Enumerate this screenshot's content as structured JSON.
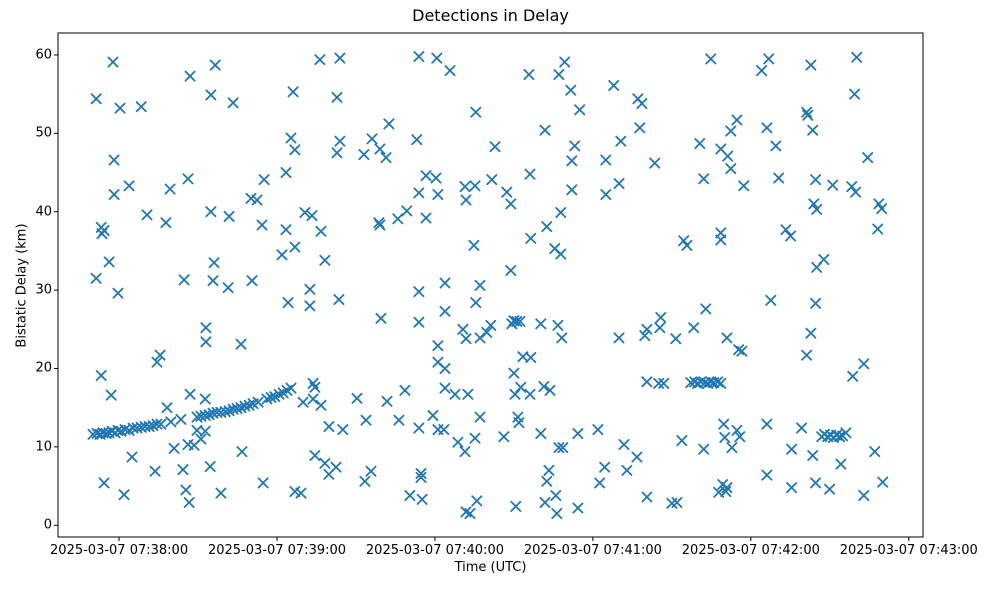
{
  "chart_data": {
    "type": "scatter",
    "title": "Detections in Delay",
    "xlabel": "Time (UTC)",
    "ylabel": "Bistatic Delay (km)",
    "marker": "x",
    "marker_color": "#1f77b4",
    "axis_color": "#000000",
    "background": "#ffffff",
    "grid": false,
    "legend": null,
    "x_axis": {
      "unit": "seconds after 2025-03-07 07:38:00 UTC",
      "lim": [
        -23.2,
        305.4
      ],
      "tick_positions": [
        0,
        60,
        120,
        180,
        240,
        300
      ],
      "tick_labels": [
        "2025-03-07 07:38:00",
        "2025-03-07 07:39:00",
        "2025-03-07 07:40:00",
        "2025-03-07 07:41:00",
        "2025-03-07 07:42:00",
        "2025-03-07 07:43:00"
      ]
    },
    "y_axis": {
      "lim": [
        -1.5,
        62.8
      ],
      "tick_positions": [
        0,
        10,
        20,
        30,
        40,
        50,
        60
      ],
      "tick_labels": [
        "0",
        "10",
        "20",
        "30",
        "40",
        "50",
        "60"
      ]
    },
    "points": [
      [
        -2.3,
        59.1
      ],
      [
        36.5,
        58.7
      ],
      [
        27.0,
        57.3
      ],
      [
        76.3,
        59.4
      ],
      [
        83.9,
        59.6
      ],
      [
        -8.7,
        54.4
      ],
      [
        0.4,
        53.2
      ],
      [
        8.4,
        53.4
      ],
      [
        34.9,
        54.9
      ],
      [
        43.3,
        53.9
      ],
      [
        66.1,
        55.3
      ],
      [
        82.8,
        54.6
      ],
      [
        65.3,
        49.4
      ],
      [
        66.8,
        47.9
      ],
      [
        83.9,
        49.0
      ],
      [
        82.8,
        47.5
      ],
      [
        -1.9,
        46.6
      ],
      [
        3.8,
        43.3
      ],
      [
        -1.9,
        42.2
      ],
      [
        26.2,
        44.2
      ],
      [
        19.4,
        42.9
      ],
      [
        55.1,
        44.1
      ],
      [
        63.4,
        45.0
      ],
      [
        50.1,
        41.7
      ],
      [
        52.4,
        41.5
      ],
      [
        70.6,
        39.9
      ],
      [
        73.3,
        39.5
      ],
      [
        34.9,
        40.0
      ],
      [
        41.8,
        39.4
      ],
      [
        10.6,
        39.6
      ],
      [
        17.8,
        38.6
      ],
      [
        54.3,
        38.3
      ],
      [
        63.4,
        37.7
      ],
      [
        76.7,
        37.5
      ],
      [
        -6.8,
        38.0
      ],
      [
        -5.7,
        37.6
      ],
      [
        -6.5,
        37.2
      ],
      [
        66.8,
        35.5
      ],
      [
        61.9,
        34.5
      ],
      [
        -3.8,
        33.6
      ],
      [
        78.2,
        33.8
      ],
      [
        -8.7,
        31.5
      ],
      [
        36.1,
        33.5
      ],
      [
        -0.4,
        29.6
      ],
      [
        41.4,
        30.3
      ],
      [
        35.7,
        31.2
      ],
      [
        50.5,
        31.2
      ],
      [
        24.7,
        31.3
      ],
      [
        113.9,
        59.8
      ],
      [
        120.7,
        59.6
      ],
      [
        125.7,
        58.0
      ],
      [
        155.7,
        57.5
      ],
      [
        169.3,
        59.1
      ],
      [
        167.1,
        57.5
      ],
      [
        171.6,
        55.5
      ],
      [
        187.9,
        56.1
      ],
      [
        197.1,
        54.4
      ],
      [
        198.6,
        53.8
      ],
      [
        175.0,
        53.0
      ],
      [
        135.5,
        52.7
      ],
      [
        197.8,
        50.7
      ],
      [
        102.5,
        51.2
      ],
      [
        96.1,
        49.3
      ],
      [
        99.1,
        48.0
      ],
      [
        101.4,
        46.9
      ],
      [
        93.0,
        47.3
      ],
      [
        113.1,
        49.2
      ],
      [
        161.8,
        50.4
      ],
      [
        142.8,
        48.3
      ],
      [
        173.1,
        48.4
      ],
      [
        190.6,
        49.0
      ],
      [
        172.0,
        46.5
      ],
      [
        184.9,
        46.6
      ],
      [
        116.6,
        44.6
      ],
      [
        120.4,
        44.3
      ],
      [
        141.6,
        44.1
      ],
      [
        156.1,
        44.8
      ],
      [
        131.4,
        43.2
      ],
      [
        135.2,
        43.3
      ],
      [
        113.9,
        42.4
      ],
      [
        121.1,
        42.2
      ],
      [
        147.3,
        42.5
      ],
      [
        131.8,
        41.5
      ],
      [
        148.8,
        41.0
      ],
      [
        172.0,
        42.8
      ],
      [
        189.9,
        43.6
      ],
      [
        184.9,
        42.2
      ],
      [
        167.8,
        39.9
      ],
      [
        109.3,
        40.1
      ],
      [
        105.9,
        39.1
      ],
      [
        98.7,
        38.6
      ],
      [
        99.1,
        38.3
      ],
      [
        116.6,
        39.2
      ],
      [
        162.5,
        38.1
      ],
      [
        156.4,
        36.6
      ],
      [
        165.5,
        35.3
      ],
      [
        167.8,
        34.6
      ],
      [
        134.8,
        35.7
      ],
      [
        148.8,
        32.5
      ],
      [
        123.8,
        30.9
      ],
      [
        137.1,
        30.6
      ],
      [
        224.8,
        59.5
      ],
      [
        246.8,
        59.5
      ],
      [
        244.1,
        58.0
      ],
      [
        262.8,
        58.7
      ],
      [
        280.2,
        59.7
      ],
      [
        279.4,
        55.0
      ],
      [
        234.7,
        51.7
      ],
      [
        232.4,
        50.3
      ],
      [
        246.1,
        50.7
      ],
      [
        261.2,
        52.7
      ],
      [
        261.6,
        52.3
      ],
      [
        263.5,
        50.4
      ],
      [
        220.6,
        48.7
      ],
      [
        228.6,
        48.0
      ],
      [
        231.2,
        47.1
      ],
      [
        249.5,
        48.4
      ],
      [
        203.5,
        46.2
      ],
      [
        284.4,
        46.9
      ],
      [
        232.4,
        45.5
      ],
      [
        222.1,
        44.2
      ],
      [
        237.3,
        43.3
      ],
      [
        250.6,
        44.3
      ],
      [
        264.6,
        44.1
      ],
      [
        271.1,
        43.4
      ],
      [
        278.3,
        43.2
      ],
      [
        279.8,
        42.5
      ],
      [
        288.6,
        41.0
      ],
      [
        289.7,
        40.4
      ],
      [
        263.9,
        41.0
      ],
      [
        265.0,
        40.3
      ],
      [
        288.2,
        37.8
      ],
      [
        253.3,
        37.7
      ],
      [
        255.1,
        36.9
      ],
      [
        228.6,
        37.3
      ],
      [
        228.6,
        36.4
      ],
      [
        214.5,
        36.3
      ],
      [
        215.7,
        35.7
      ],
      [
        267.7,
        33.9
      ],
      [
        265.0,
        32.9
      ],
      [
        72.5,
        30.1
      ],
      [
        64.2,
        28.4
      ],
      [
        72.5,
        28.0
      ],
      [
        83.5,
        28.8
      ],
      [
        33.0,
        25.2
      ],
      [
        33.0,
        23.4
      ],
      [
        46.3,
        23.1
      ],
      [
        15.6,
        21.7
      ],
      [
        14.4,
        20.8
      ],
      [
        -6.8,
        19.1
      ],
      [
        -3.0,
        16.6
      ],
      [
        18.2,
        15.0
      ],
      [
        27.0,
        16.7
      ],
      [
        32.7,
        16.1
      ],
      [
        19.7,
        13.2
      ],
      [
        23.5,
        13.5
      ],
      [
        73.7,
        18.1
      ],
      [
        74.4,
        17.6
      ],
      [
        69.9,
        15.7
      ],
      [
        73.7,
        16.1
      ],
      [
        76.7,
        15.3
      ],
      [
        79.7,
        12.6
      ],
      [
        85.0,
        12.2
      ],
      [
        29.6,
        12.1
      ],
      [
        32.7,
        12.0
      ],
      [
        31.1,
        11.0
      ],
      [
        20.9,
        9.8
      ],
      [
        26.2,
        10.3
      ],
      [
        28.5,
        10.2
      ],
      [
        46.7,
        9.4
      ],
      [
        4.9,
        8.7
      ],
      [
        13.7,
        6.9
      ],
      [
        24.3,
        7.1
      ],
      [
        34.6,
        7.5
      ],
      [
        -5.7,
        5.4
      ],
      [
        1.9,
        3.9
      ],
      [
        25.4,
        4.5
      ],
      [
        26.6,
        2.9
      ],
      [
        38.7,
        4.1
      ],
      [
        54.7,
        5.4
      ],
      [
        66.8,
        4.3
      ],
      [
        69.1,
        4.1
      ],
      [
        74.4,
        8.9
      ],
      [
        78.2,
        7.9
      ],
      [
        79.7,
        6.5
      ],
      [
        82.4,
        7.4
      ],
      [
        -9.9,
        11.6
      ],
      [
        -8.4,
        11.7
      ],
      [
        -7.2,
        11.6
      ],
      [
        -6.1,
        11.8
      ],
      [
        -4.9,
        11.7
      ],
      [
        -3.8,
        11.8
      ],
      [
        -2.7,
        12.0
      ],
      [
        -1.5,
        11.8
      ],
      [
        -0.4,
        12.1
      ],
      [
        0.8,
        12.0
      ],
      [
        2.3,
        12.2
      ],
      [
        3.8,
        12.1
      ],
      [
        5.3,
        12.4
      ],
      [
        6.8,
        12.4
      ],
      [
        8.4,
        12.5
      ],
      [
        9.9,
        12.6
      ],
      [
        11.4,
        12.6
      ],
      [
        12.9,
        12.7
      ],
      [
        14.4,
        12.9
      ],
      [
        15.9,
        12.9
      ],
      [
        29.6,
        13.8
      ],
      [
        31.1,
        13.9
      ],
      [
        32.7,
        14.0
      ],
      [
        34.2,
        14.1
      ],
      [
        35.7,
        14.3
      ],
      [
        37.2,
        14.4
      ],
      [
        38.7,
        14.4
      ],
      [
        40.3,
        14.5
      ],
      [
        41.8,
        14.6
      ],
      [
        43.3,
        14.8
      ],
      [
        44.8,
        14.9
      ],
      [
        46.3,
        15.0
      ],
      [
        47.8,
        15.2
      ],
      [
        49.4,
        15.3
      ],
      [
        50.9,
        15.5
      ],
      [
        52.8,
        15.7
      ],
      [
        56.2,
        16.1
      ],
      [
        57.7,
        16.3
      ],
      [
        59.2,
        16.4
      ],
      [
        60.8,
        16.7
      ],
      [
        62.3,
        16.9
      ],
      [
        63.8,
        17.2
      ],
      [
        65.3,
        17.5
      ],
      [
        113.9,
        29.8
      ],
      [
        135.5,
        28.4
      ],
      [
        99.5,
        26.4
      ],
      [
        123.8,
        27.3
      ],
      [
        113.9,
        25.9
      ],
      [
        150.0,
        26.1
      ],
      [
        151.1,
        26.0
      ],
      [
        152.3,
        26.0
      ],
      [
        149.2,
        25.7
      ],
      [
        160.2,
        25.7
      ],
      [
        166.7,
        25.5
      ],
      [
        168.2,
        23.9
      ],
      [
        189.9,
        23.9
      ],
      [
        130.6,
        25.0
      ],
      [
        131.8,
        23.8
      ],
      [
        137.1,
        23.9
      ],
      [
        139.7,
        24.6
      ],
      [
        141.2,
        25.5
      ],
      [
        121.1,
        22.9
      ],
      [
        121.1,
        20.8
      ],
      [
        123.8,
        20.0
      ],
      [
        153.4,
        21.5
      ],
      [
        156.4,
        21.4
      ],
      [
        150.0,
        19.4
      ],
      [
        152.6,
        17.6
      ],
      [
        156.1,
        16.7
      ],
      [
        161.4,
        17.7
      ],
      [
        163.7,
        17.2
      ],
      [
        150.4,
        16.7
      ],
      [
        123.8,
        17.5
      ],
      [
        127.6,
        16.7
      ],
      [
        132.5,
        16.7
      ],
      [
        108.6,
        17.2
      ],
      [
        90.4,
        16.2
      ],
      [
        101.8,
        15.8
      ],
      [
        93.8,
        13.4
      ],
      [
        106.3,
        13.4
      ],
      [
        119.2,
        14.0
      ],
      [
        113.9,
        12.4
      ],
      [
        121.1,
        12.2
      ],
      [
        123.4,
        12.2
      ],
      [
        137.1,
        13.8
      ],
      [
        128.7,
        10.6
      ],
      [
        135.2,
        11.1
      ],
      [
        131.4,
        9.4
      ],
      [
        146.2,
        11.3
      ],
      [
        151.5,
        13.8
      ],
      [
        151.9,
        13.1
      ],
      [
        160.2,
        11.7
      ],
      [
        174.3,
        11.7
      ],
      [
        181.9,
        12.2
      ],
      [
        167.1,
        9.9
      ],
      [
        168.6,
        9.9
      ],
      [
        191.8,
        10.3
      ],
      [
        196.7,
        8.7
      ],
      [
        95.7,
        6.9
      ],
      [
        93.4,
        5.6
      ],
      [
        114.7,
        6.6
      ],
      [
        114.7,
        6.1
      ],
      [
        163.3,
        7.0
      ],
      [
        162.5,
        5.6
      ],
      [
        184.5,
        7.4
      ],
      [
        192.9,
        7.0
      ],
      [
        182.6,
        5.4
      ],
      [
        110.5,
        3.8
      ],
      [
        115.1,
        3.3
      ],
      [
        135.9,
        3.1
      ],
      [
        165.9,
        3.8
      ],
      [
        161.8,
        2.9
      ],
      [
        150.7,
        2.4
      ],
      [
        131.8,
        1.7
      ],
      [
        133.3,
        1.5
      ],
      [
        174.3,
        2.2
      ],
      [
        166.3,
        1.5
      ],
      [
        247.6,
        28.7
      ],
      [
        264.6,
        28.3
      ],
      [
        222.9,
        27.6
      ],
      [
        205.8,
        26.5
      ],
      [
        205.4,
        25.2
      ],
      [
        200.5,
        25.0
      ],
      [
        199.7,
        24.2
      ],
      [
        211.5,
        23.8
      ],
      [
        218.3,
        25.2
      ],
      [
        230.9,
        23.9
      ],
      [
        235.4,
        22.4
      ],
      [
        236.6,
        22.2
      ],
      [
        262.8,
        24.5
      ],
      [
        261.2,
        21.7
      ],
      [
        282.9,
        20.6
      ],
      [
        278.7,
        19.0
      ],
      [
        200.5,
        18.3
      ],
      [
        205.0,
        18.1
      ],
      [
        206.9,
        18.1
      ],
      [
        217.2,
        18.2
      ],
      [
        218.7,
        18.3
      ],
      [
        219.8,
        18.1
      ],
      [
        221.0,
        18.3
      ],
      [
        222.5,
        18.2
      ],
      [
        223.6,
        18.1
      ],
      [
        224.8,
        18.3
      ],
      [
        225.9,
        18.2
      ],
      [
        227.4,
        18.3
      ],
      [
        228.6,
        18.1
      ],
      [
        229.7,
        12.9
      ],
      [
        230.1,
        11.2
      ],
      [
        234.7,
        12.1
      ],
      [
        235.8,
        11.3
      ],
      [
        232.8,
        9.9
      ],
      [
        246.1,
        12.9
      ],
      [
        259.3,
        12.4
      ],
      [
        266.9,
        11.3
      ],
      [
        268.0,
        11.6
      ],
      [
        269.2,
        11.3
      ],
      [
        270.3,
        11.5
      ],
      [
        271.4,
        11.2
      ],
      [
        272.6,
        11.5
      ],
      [
        273.7,
        11.3
      ],
      [
        274.9,
        11.4
      ],
      [
        276.1,
        11.8
      ],
      [
        213.8,
        10.8
      ],
      [
        222.1,
        9.7
      ],
      [
        255.5,
        9.7
      ],
      [
        263.5,
        8.9
      ],
      [
        274.2,
        7.8
      ],
      [
        287.1,
        9.4
      ],
      [
        246.1,
        6.4
      ],
      [
        229.3,
        5.2
      ],
      [
        230.9,
        4.8
      ],
      [
        227.8,
        4.2
      ],
      [
        230.5,
        4.3
      ],
      [
        255.5,
        4.8
      ],
      [
        264.6,
        5.4
      ],
      [
        269.9,
        4.6
      ],
      [
        290.1,
        5.5
      ],
      [
        200.5,
        3.6
      ],
      [
        210.0,
        2.8
      ],
      [
        211.9,
        2.9
      ],
      [
        282.9,
        3.8
      ]
    ]
  }
}
